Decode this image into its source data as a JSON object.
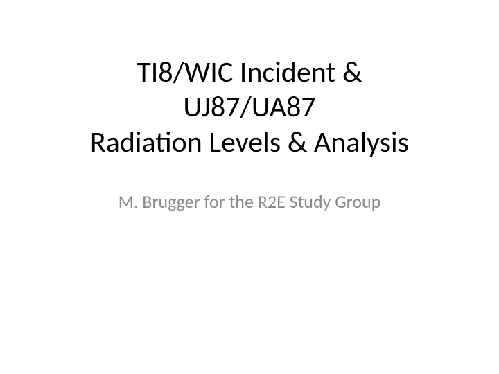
{
  "slide": {
    "title_line1": "TI8/WIC Incident &",
    "title_line2": "UJ87/UA87",
    "title_line3": "Radiation Levels & Analysis",
    "subtitle": "M. Brugger for the R2E Study Group",
    "background_color": "#ffffff",
    "title_color": "#000000",
    "subtitle_color": "#898989",
    "title_fontsize": 42,
    "subtitle_fontsize": 26,
    "font_family": "Calibri"
  }
}
